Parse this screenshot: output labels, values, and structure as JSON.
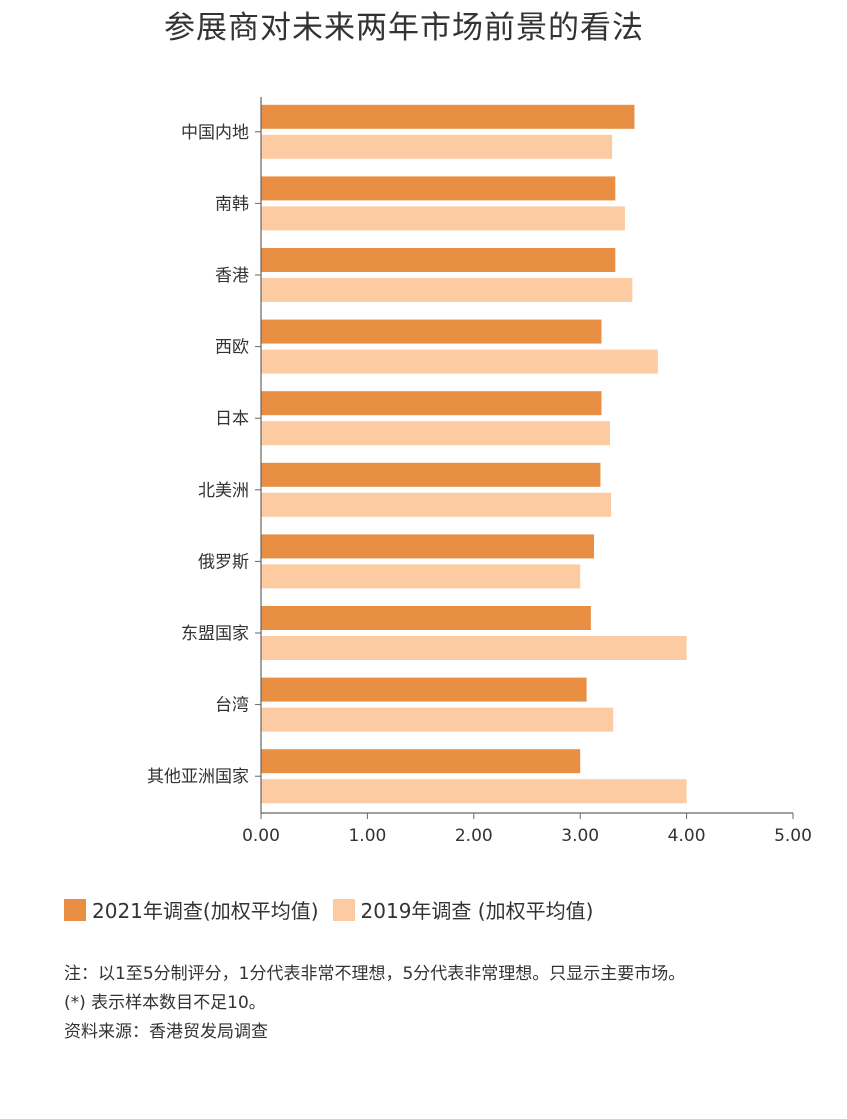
{
  "title": "参展商对未来两年市场前景的看法",
  "chart_data": {
    "type": "bar",
    "orientation": "horizontal",
    "categories": [
      "中国内地",
      "南韩",
      "香港",
      "西欧",
      "日本",
      "北美洲",
      "俄罗斯",
      "东盟国家",
      "台湾",
      "其他亚洲国家"
    ],
    "series": [
      {
        "name": "2021年调查(加权平均值)",
        "color": "#E88F43",
        "values": [
          3.51,
          3.33,
          3.33,
          3.2,
          3.2,
          3.19,
          3.13,
          3.1,
          3.06,
          3.0
        ]
      },
      {
        "name": "2019年调查 (加权平均值)",
        "color": "#FDCBA2",
        "values": [
          3.3,
          3.42,
          3.49,
          3.73,
          3.28,
          3.29,
          3.0,
          4.0,
          3.31,
          4.0
        ]
      }
    ],
    "xlim": [
      0,
      5
    ],
    "xticks": [
      "0.00",
      "1.00",
      "2.00",
      "3.00",
      "4.00",
      "5.00"
    ],
    "grid": false,
    "legend_position": "bottom-left"
  },
  "notes": [
    "注：以1至5分制评分，1分代表非常不理想，5分代表非常理想。只显示主要市场。",
    "(*) 表示样本数目不足10。",
    "资料来源：香港贸发局调查"
  ]
}
